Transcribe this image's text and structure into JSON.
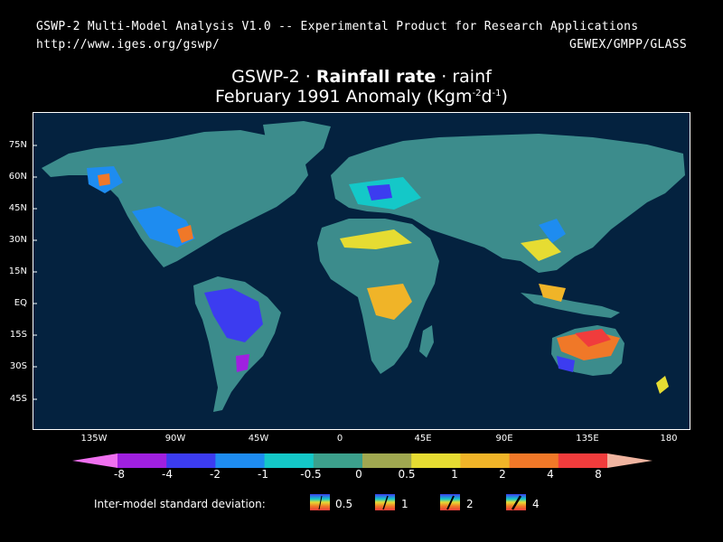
{
  "header": {
    "left_line1": "GSWP-2 Multi-Model Analysis V1.0 -- Experimental Product for Research Applications",
    "left_line2": "http://www.iges.org/gswp/",
    "right_line2": "GEWEX/GMPP/GLASS"
  },
  "title": {
    "prefix": "GSWP-2 · ",
    "variable": "Rainfall rate",
    "suffix": " · rainf",
    "line2_main": "February 1991 Anomaly (Kgm",
    "line2_sup1": "-2",
    "line2_mid": "d",
    "line2_sup2": "-1",
    "line2_end": ")"
  },
  "map": {
    "ocean_color": "#04223f",
    "lat_labels": [
      "75N",
      "60N",
      "45N",
      "30N",
      "15N",
      "EQ",
      "15S",
      "30S",
      "45S"
    ],
    "lon_labels": [
      "135W",
      "90W",
      "45W",
      "0",
      "45E",
      "90E",
      "135E",
      "180"
    ]
  },
  "colorbar": {
    "labels": [
      "-8",
      "-4",
      "-2",
      "-1",
      "-0.5",
      "0",
      "0.5",
      "1",
      "2",
      "4",
      "8"
    ],
    "colors": [
      "#f070f0",
      "#a020e0",
      "#3c3cf0",
      "#1e8cf0",
      "#14c8c8",
      "#3ca08c",
      "#a0a850",
      "#e6dc32",
      "#f0b428",
      "#f07828",
      "#f03c3c",
      "#f0b4a0"
    ]
  },
  "sd_legend": {
    "label": "Inter-model standard deviation:",
    "items": [
      "0.5",
      "1",
      "2",
      "4"
    ]
  }
}
